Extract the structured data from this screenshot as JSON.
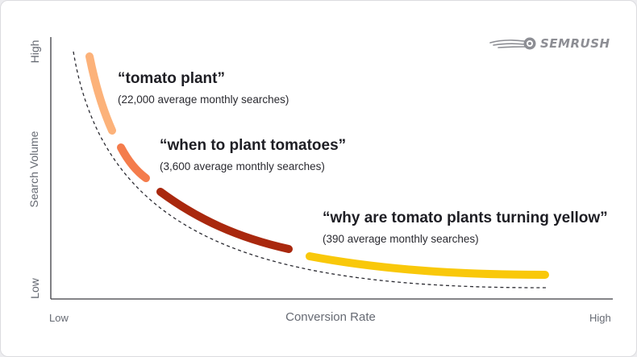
{
  "brand": {
    "name": "SEMRUSH",
    "logo_icon": "semrush-fireball-icon"
  },
  "axes": {
    "x_title": "Conversion Rate",
    "x_low": "Low",
    "x_high": "High",
    "y_title": "Search Volume",
    "y_low": "Low",
    "y_high": "High"
  },
  "keywords": [
    {
      "phrase": "“tomato plant”",
      "searches": "(22,000 average monthly searches)",
      "color": "#fcb27a"
    },
    {
      "phrase": "“when to plant tomatoes”",
      "searches": "(3,600 average monthly searches)",
      "color": "#f47c4c"
    },
    {
      "phrase": "“why are tomato plants turning yellow”",
      "searches": "(390 average monthly searches)",
      "color": "#f9c80a"
    }
  ],
  "colors": {
    "segment_dark_red": "#a9280e",
    "dashed_curve": "#2c2c33",
    "axis": "#3c3c42"
  }
}
